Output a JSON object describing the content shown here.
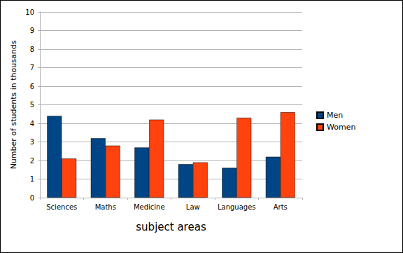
{
  "chart_data": {
    "type": "bar",
    "x_label": "subject areas",
    "y_label": "Number of students in thousands",
    "categories": [
      "Sciences",
      "Maths",
      "Medicine",
      "Law",
      "Languages",
      "Arts"
    ],
    "series": [
      {
        "name": "Men",
        "color": "#004586",
        "values": [
          4.4,
          3.2,
          2.7,
          1.8,
          1.6,
          2.2
        ]
      },
      {
        "name": "Women",
        "color": "#ff420e",
        "values": [
          2.1,
          2.8,
          4.2,
          1.9,
          4.3,
          4.6
        ]
      }
    ],
    "ylim": [
      0,
      10
    ],
    "yticks": [
      0,
      1,
      2,
      3,
      4,
      5,
      6,
      7,
      8,
      9,
      10
    ],
    "grid": true,
    "legend": "right"
  }
}
